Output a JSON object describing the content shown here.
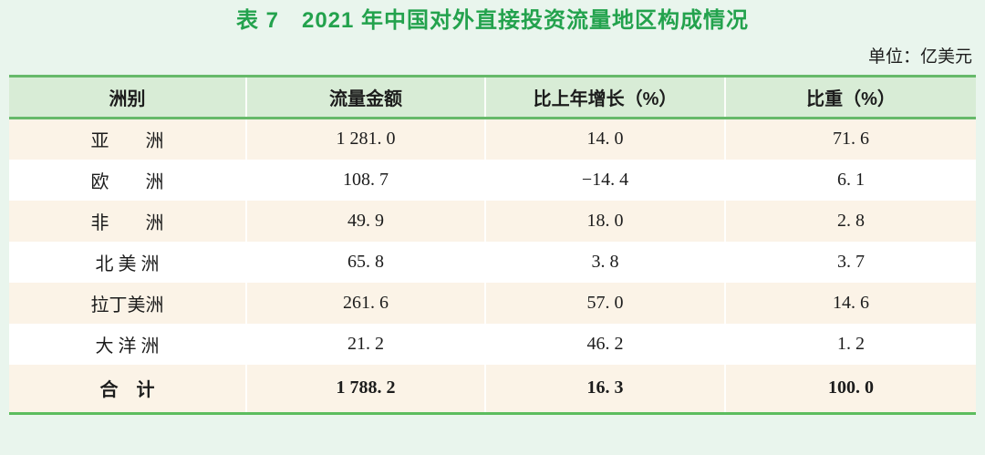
{
  "title": "表 7　2021 年中国对外直接投资流量地区构成情况",
  "unit_note": "单位：亿美元",
  "colors": {
    "page_bg": "#e9f5ed",
    "title_green": "#23a24d",
    "header_bg": "#d8ecd6",
    "border_green": "#66b96a",
    "bottom_border_green": "#5cbd5e",
    "row_cream": "#fbf3e7",
    "row_white": "#ffffff",
    "text": "#1c1c1c"
  },
  "table": {
    "columns": [
      "洲别",
      "流量金额",
      "比上年增长（%）",
      "比重（%）"
    ],
    "rows": [
      {
        "name": "亚　　洲",
        "amount": "1 281. 0",
        "growth": "14. 0",
        "share": "71. 6"
      },
      {
        "name": "欧　　洲",
        "amount": "108. 7",
        "growth": "−14. 4",
        "share": "6. 1"
      },
      {
        "name": "非　　洲",
        "amount": "49. 9",
        "growth": "18. 0",
        "share": "2. 8"
      },
      {
        "name": "北 美 洲",
        "amount": "65. 8",
        "growth": "3. 8",
        "share": "3. 7"
      },
      {
        "name": "拉丁美洲",
        "amount": "261. 6",
        "growth": "57. 0",
        "share": "14. 6"
      },
      {
        "name": "大 洋 洲",
        "amount": "21. 2",
        "growth": "46. 2",
        "share": "1. 2"
      }
    ],
    "total_row": {
      "name": "合　计",
      "amount": "1 788. 2",
      "growth": "16. 3",
      "share": "100. 0"
    }
  }
}
